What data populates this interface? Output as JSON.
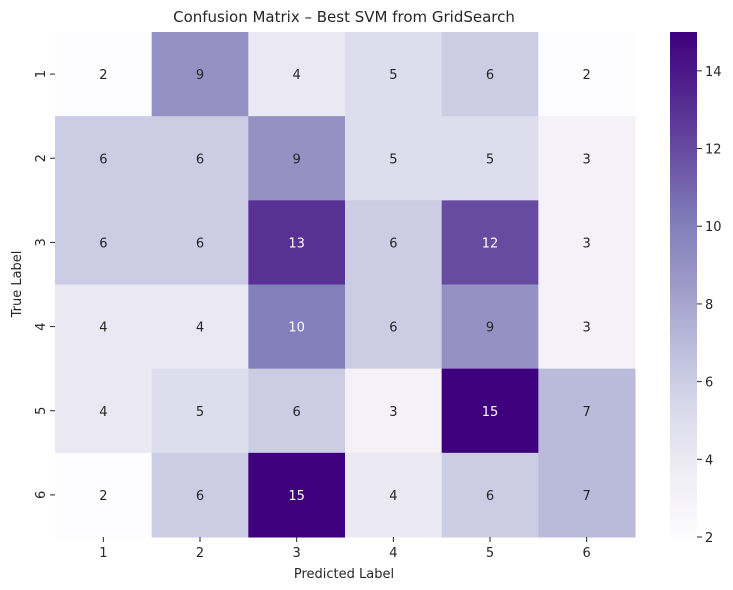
{
  "chart_data": {
    "type": "heatmap",
    "title": "Confusion Matrix – Best SVM from GridSearch",
    "xlabel": "Predicted Label",
    "ylabel": "True Label",
    "x_categories": [
      "1",
      "2",
      "3",
      "4",
      "5",
      "6"
    ],
    "y_categories": [
      "1",
      "2",
      "3",
      "4",
      "5",
      "6"
    ],
    "values": [
      [
        2,
        9,
        4,
        5,
        6,
        2
      ],
      [
        6,
        6,
        9,
        5,
        5,
        3
      ],
      [
        6,
        6,
        13,
        6,
        12,
        3
      ],
      [
        4,
        4,
        10,
        6,
        9,
        3
      ],
      [
        4,
        5,
        6,
        3,
        15,
        7
      ],
      [
        2,
        6,
        15,
        4,
        6,
        7
      ]
    ],
    "colormap": "Purples",
    "color_range": [
      2,
      15
    ],
    "colorbar_ticks": [
      2,
      4,
      6,
      8,
      10,
      12,
      14
    ],
    "annotations": true,
    "grid": false
  }
}
